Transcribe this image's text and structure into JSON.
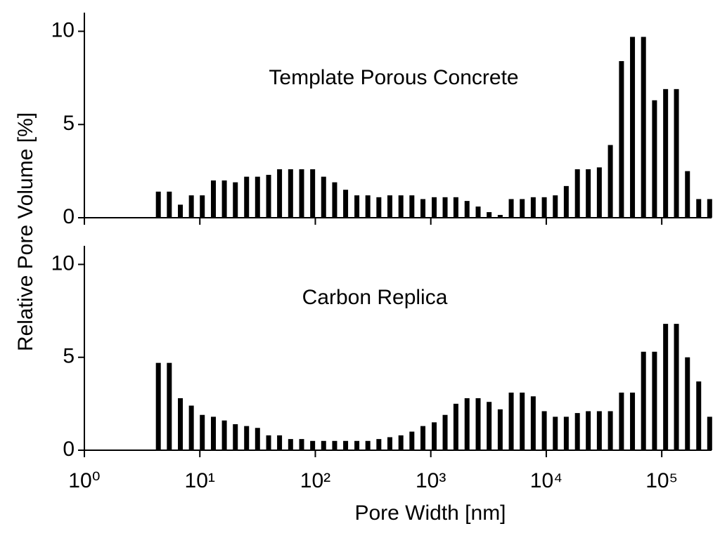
{
  "chart_data": [
    {
      "type": "bar",
      "title": "Template Porous Concrete",
      "y_label": "Relative Pore Volume [%]",
      "log_x": true,
      "color": "#000000",
      "x": [
        4.37,
        5.44,
        6.78,
        8.44,
        10.5,
        13.1,
        16.3,
        20.3,
        25.4,
        31.6,
        39.4,
        49.0,
        61.1,
        76.1,
        94.8,
        118,
        147,
        183,
        229,
        285,
        355,
        442,
        551,
        686,
        855,
        1070,
        1330,
        1650,
        2060,
        2570,
        3200,
        3990,
        4970,
        6190,
        7710,
        9610,
        11970,
        14900,
        18600,
        23100,
        28800,
        35900,
        44800,
        55800,
        69500,
        86600,
        108000,
        134000,
        167000,
        209000,
        260000
      ],
      "values": [
        1.4,
        1.4,
        0.7,
        1.2,
        1.2,
        2.0,
        2.0,
        1.9,
        2.2,
        2.2,
        2.3,
        2.6,
        2.6,
        2.6,
        2.6,
        2.2,
        1.9,
        1.5,
        1.2,
        1.2,
        1.1,
        1.2,
        1.2,
        1.2,
        1.0,
        1.1,
        1.1,
        1.1,
        0.9,
        0.6,
        0.3,
        0.15,
        1.0,
        1.0,
        1.1,
        1.1,
        1.2,
        1.7,
        2.6,
        2.6,
        2.7,
        3.9,
        8.4,
        9.7,
        9.7,
        6.3,
        6.9,
        6.9,
        2.5,
        1.0,
        1.0
      ],
      "xlim": [
        1,
        270000
      ],
      "xticks": [
        1,
        10,
        100,
        1000,
        10000,
        100000
      ],
      "ylim": [
        0,
        11
      ],
      "yticks": [
        0,
        5,
        10
      ]
    },
    {
      "type": "bar",
      "title": "Carbon Replica",
      "x_label": "Pore Width [nm]",
      "log_x": true,
      "color": "#000000",
      "x": [
        4.37,
        5.44,
        6.78,
        8.44,
        10.5,
        13.1,
        16.3,
        20.3,
        25.4,
        31.6,
        39.4,
        49.0,
        61.1,
        76.1,
        94.8,
        118,
        147,
        183,
        229,
        285,
        355,
        442,
        551,
        686,
        855,
        1070,
        1330,
        1650,
        2060,
        2570,
        3200,
        3990,
        4970,
        6190,
        7710,
        9610,
        11970,
        14900,
        18600,
        23100,
        28800,
        35900,
        44800,
        55800,
        69500,
        86600,
        108000,
        134000,
        167000,
        209000,
        260000
      ],
      "values": [
        4.7,
        4.7,
        2.8,
        2.4,
        1.9,
        1.8,
        1.6,
        1.4,
        1.3,
        1.2,
        0.8,
        0.8,
        0.6,
        0.6,
        0.5,
        0.5,
        0.5,
        0.5,
        0.5,
        0.5,
        0.6,
        0.7,
        0.8,
        1.0,
        1.3,
        1.5,
        1.9,
        2.5,
        2.8,
        2.8,
        2.6,
        2.2,
        3.1,
        3.1,
        2.9,
        2.1,
        1.8,
        1.8,
        2.0,
        2.1,
        2.1,
        2.1,
        3.1,
        3.1,
        5.3,
        5.3,
        6.8,
        6.8,
        5.0,
        3.7,
        1.8
      ],
      "xlim": [
        1,
        270000
      ],
      "xticks": [
        {
          "value": 1,
          "label": "10⁰"
        },
        {
          "value": 10,
          "label": "10¹"
        },
        {
          "value": 100,
          "label": "10²"
        },
        {
          "value": 1000,
          "label": "10³"
        },
        {
          "value": 10000,
          "label": "10⁴"
        },
        {
          "value": 100000,
          "label": "10⁵"
        }
      ],
      "ylim": [
        0,
        11
      ],
      "yticks": [
        0,
        5,
        10
      ]
    }
  ]
}
